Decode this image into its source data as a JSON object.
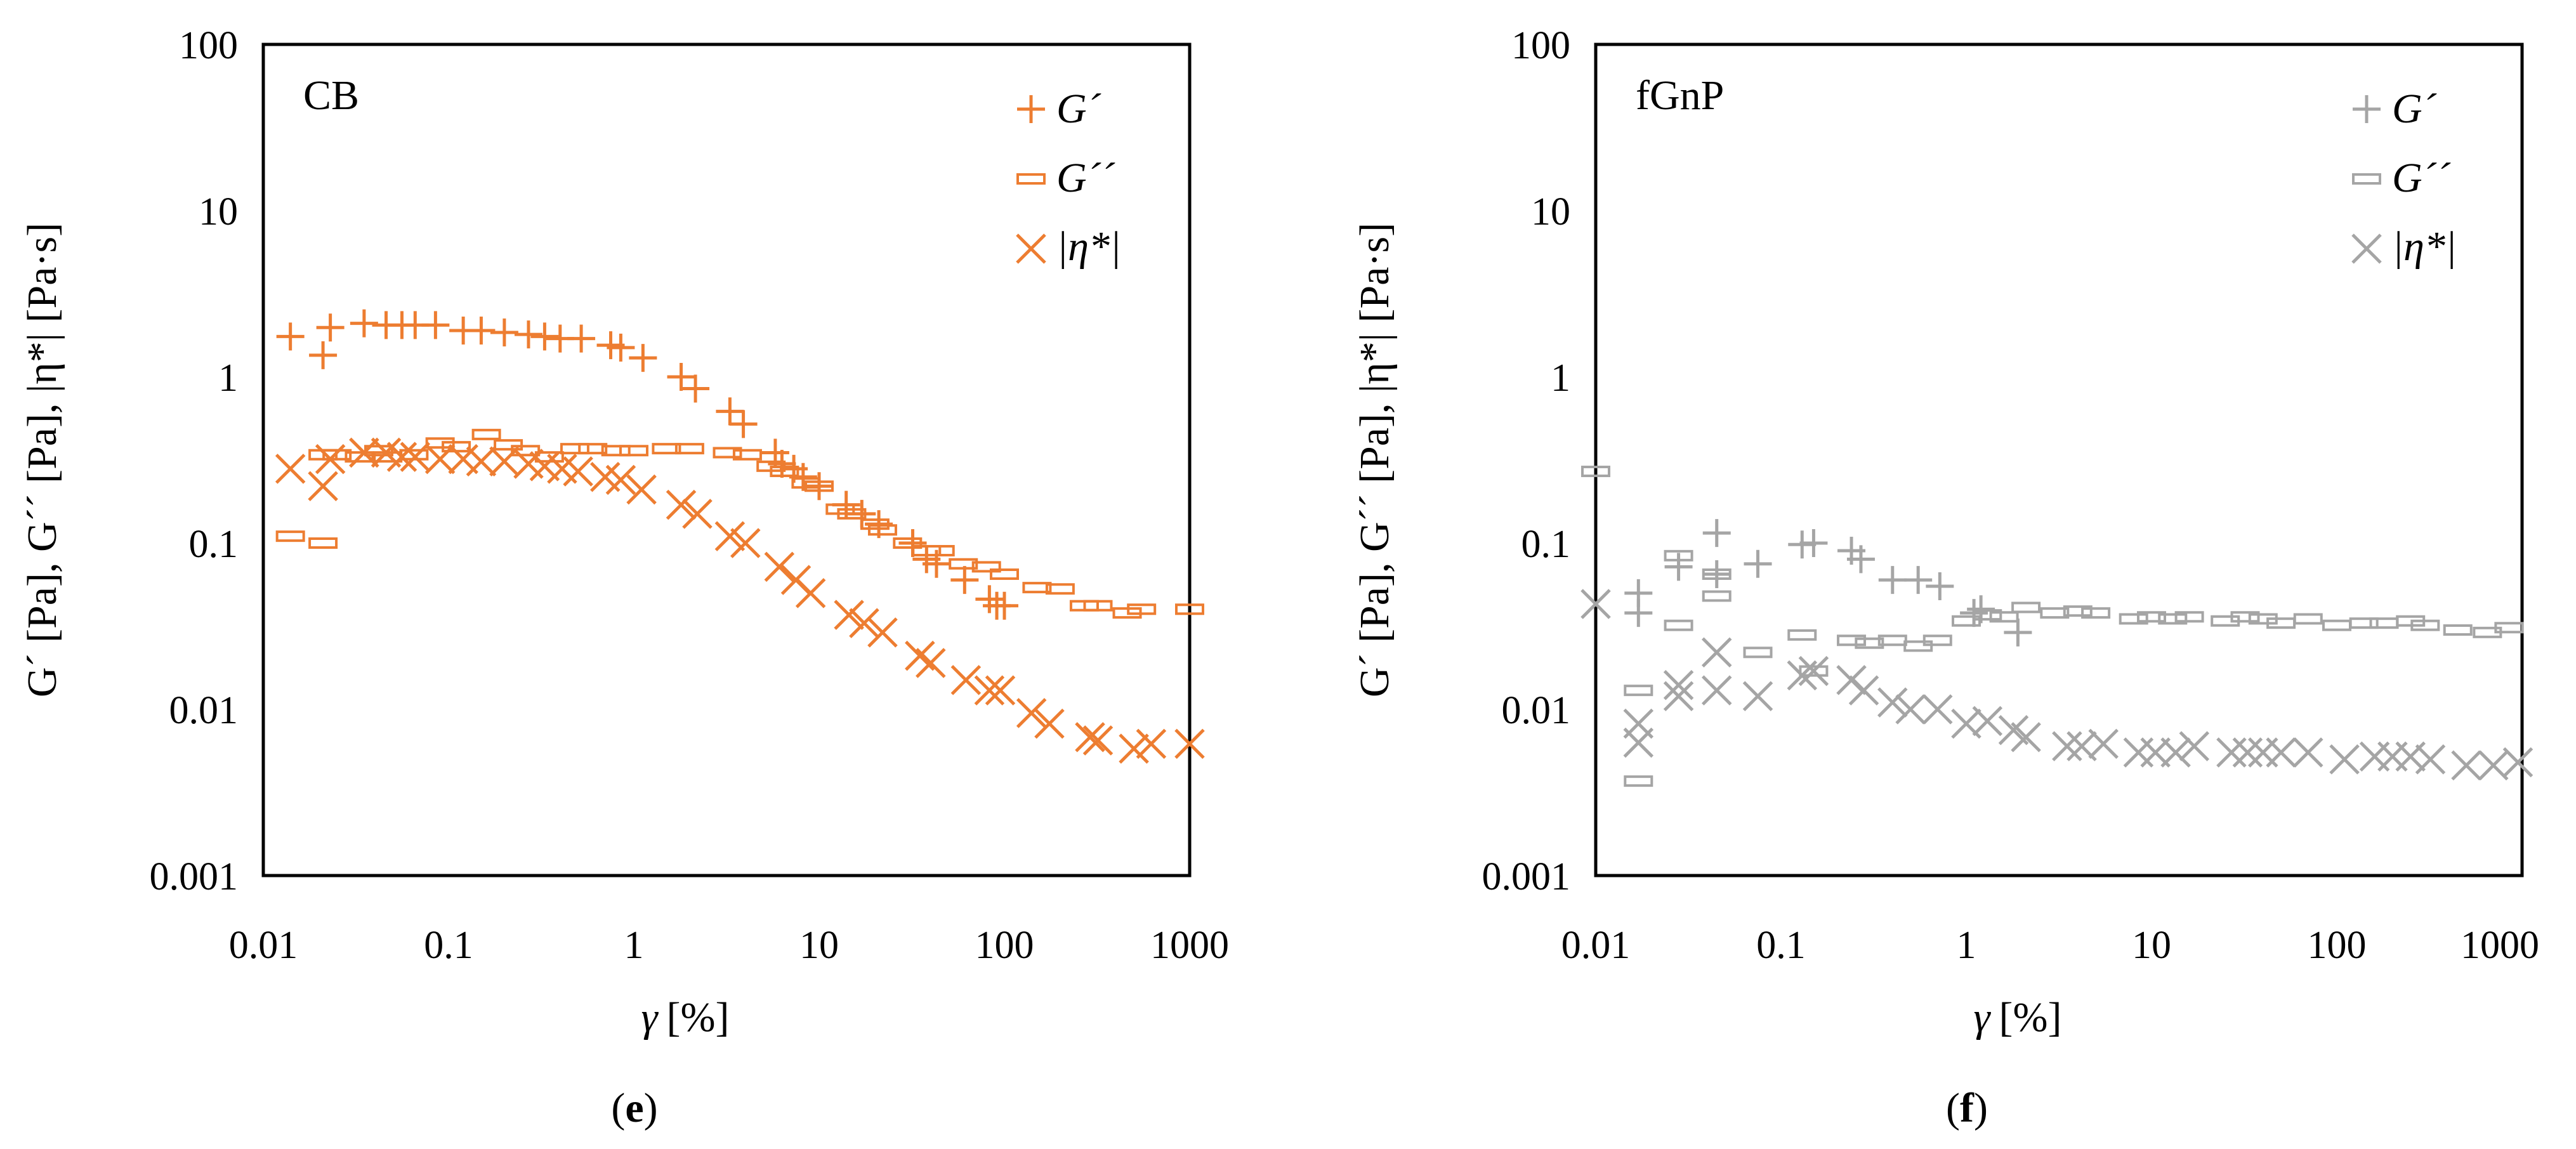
{
  "panels": [
    {
      "id": "e",
      "caption": "(e)",
      "caption_letter": "e",
      "annotation": "CB",
      "color": "#ED7D31",
      "xlabel_sym": "γ",
      "xlabel_unit": "[%]",
      "ylabel": "G´ [Pa], G´´ [Pa], |η*| [Pa·s]",
      "legend": [
        "G´",
        "G´´",
        "|η*|"
      ],
      "x_ticks": [
        "0.01",
        "0.1",
        "1",
        "10",
        "100",
        "1000"
      ],
      "y_ticks": [
        "0.001",
        "0.01",
        "0.1",
        "1",
        "10",
        "100"
      ]
    },
    {
      "id": "f",
      "caption": "(f)",
      "caption_letter": "f",
      "annotation": "fGnP",
      "color": "#A5A5A5",
      "xlabel_sym": "γ",
      "xlabel_unit": "[%]",
      "ylabel": "G´ [Pa], G´´ [Pa], |η*| [Pa·s]",
      "legend": [
        "G´",
        "G´´",
        "|η*|"
      ],
      "x_ticks": [
        "0.01",
        "0.1",
        "1",
        "10",
        "100",
        "1000"
      ],
      "y_ticks": [
        "0.001",
        "0.01",
        "0.1",
        "1",
        "10",
        "100"
      ]
    }
  ],
  "chart_data": [
    {
      "type": "scatter",
      "title": "CB",
      "xlabel": "γ [%]",
      "ylabel": "G´ [Pa], G´´ [Pa], |η*| [Pa·s]",
      "xscale": "log",
      "yscale": "log",
      "xlim": [
        0.01,
        1000
      ],
      "ylim": [
        0.001,
        100
      ],
      "legend_position": "top-right",
      "color": "#ED7D31",
      "series": [
        {
          "name": "G´",
          "marker": "plus",
          "x": [
            0.014,
            0.021,
            0.023,
            0.035,
            0.046,
            0.056,
            0.066,
            0.085,
            0.12,
            0.15,
            0.2,
            0.27,
            0.33,
            0.4,
            0.52,
            0.75,
            0.85,
            1.12,
            1.8,
            2.15,
            3.3,
            3.9,
            5.8,
            6.3,
            7.3,
            8.2,
            10,
            14,
            17,
            21,
            32,
            38,
            43,
            61,
            83,
            91,
            100
          ],
          "y": [
            1.75,
            1.35,
            1.98,
            2.1,
            2.05,
            2.05,
            2.05,
            2.05,
            1.9,
            1.9,
            1.85,
            1.8,
            1.75,
            1.7,
            1.7,
            1.55,
            1.5,
            1.3,
            1.0,
            0.85,
            0.62,
            0.52,
            0.35,
            0.3,
            0.28,
            0.25,
            0.22,
            0.17,
            0.15,
            0.13,
            0.1,
            0.08,
            0.075,
            0.06,
            0.046,
            0.042,
            0.042
          ]
        },
        {
          "name": "G´´",
          "marker": "rect",
          "x": [
            0.014,
            0.021,
            0.021,
            0.025,
            0.033,
            0.042,
            0.047,
            0.065,
            0.09,
            0.11,
            0.16,
            0.21,
            0.26,
            0.35,
            0.48,
            0.6,
            0.8,
            1.0,
            1.5,
            2.0,
            3.2,
            4.1,
            5.5,
            6.5,
            8.5,
            10,
            13,
            15,
            20,
            22,
            30,
            38,
            45,
            60,
            80,
            100,
            150,
            200,
            270,
            320,
            460,
            550,
            1000
          ],
          "y": [
            0.11,
            0.1,
            0.34,
            0.34,
            0.33,
            0.36,
            0.33,
            0.34,
            0.4,
            0.38,
            0.45,
            0.39,
            0.36,
            0.33,
            0.37,
            0.37,
            0.36,
            0.36,
            0.37,
            0.37,
            0.35,
            0.34,
            0.29,
            0.27,
            0.23,
            0.22,
            0.16,
            0.15,
            0.13,
            0.12,
            0.1,
            0.09,
            0.09,
            0.075,
            0.072,
            0.065,
            0.054,
            0.053,
            0.042,
            0.042,
            0.038,
            0.04,
            0.04
          ]
        },
        {
          "name": "|η*|",
          "marker": "cross",
          "x": [
            0.014,
            0.021,
            0.023,
            0.035,
            0.046,
            0.056,
            0.066,
            0.09,
            0.12,
            0.15,
            0.2,
            0.27,
            0.33,
            0.41,
            0.5,
            0.7,
            0.85,
            1.1,
            1.8,
            2.2,
            3.3,
            4.0,
            6.1,
            7.5,
            9.0,
            14.5,
            17.5,
            22,
            35,
            40,
            62,
            83,
            95,
            140,
            175,
            290,
            320,
            500,
            620,
            1000
          ],
          "y": [
            0.28,
            0.22,
            0.32,
            0.35,
            0.35,
            0.33,
            0.33,
            0.32,
            0.32,
            0.31,
            0.31,
            0.3,
            0.29,
            0.28,
            0.27,
            0.25,
            0.24,
            0.21,
            0.17,
            0.15,
            0.11,
            0.1,
            0.072,
            0.06,
            0.05,
            0.037,
            0.033,
            0.029,
            0.021,
            0.019,
            0.015,
            0.013,
            0.013,
            0.0095,
            0.0082,
            0.0068,
            0.0065,
            0.0058,
            0.0062,
            0.0062
          ]
        }
      ]
    },
    {
      "type": "scatter",
      "title": "fGnP",
      "xlabel": "γ [%]",
      "ylabel": "G´ [Pa], G´´ [Pa], |η*| [Pa·s]",
      "xscale": "log",
      "yscale": "log",
      "xlim": [
        0.01,
        1000
      ],
      "ylim": [
        0.001,
        100
      ],
      "legend_position": "top-right",
      "color": "#A5A5A5",
      "series": [
        {
          "name": "G´",
          "marker": "plus",
          "x": [
            0.017,
            0.017,
            0.028,
            0.045,
            0.045,
            0.075,
            0.13,
            0.15,
            0.24,
            0.27,
            0.4,
            0.55,
            0.72,
            1.1,
            1.2,
            1.9
          ],
          "y": [
            0.05,
            0.038,
            0.072,
            0.065,
            0.115,
            0.075,
            0.098,
            0.1,
            0.09,
            0.08,
            0.06,
            0.06,
            0.055,
            0.038,
            0.04,
            0.029
          ]
        },
        {
          "name": "G´´",
          "marker": "rect",
          "x": [
            0.01,
            0.017,
            0.017,
            0.028,
            0.028,
            0.045,
            0.045,
            0.075,
            0.13,
            0.15,
            0.24,
            0.3,
            0.4,
            0.55,
            0.7,
            1.0,
            1.3,
            1.6,
            2.1,
            3.0,
            4.0,
            5.0,
            8.0,
            10,
            13,
            16,
            25,
            32,
            40,
            50,
            70,
            100,
            140,
            180,
            250,
            300,
            450,
            650,
            850
          ],
          "y": [
            0.27,
            0.0037,
            0.013,
            0.032,
            0.084,
            0.048,
            0.065,
            0.022,
            0.028,
            0.017,
            0.026,
            0.025,
            0.026,
            0.024,
            0.026,
            0.034,
            0.037,
            0.036,
            0.041,
            0.038,
            0.039,
            0.038,
            0.035,
            0.036,
            0.035,
            0.036,
            0.034,
            0.036,
            0.035,
            0.033,
            0.035,
            0.032,
            0.033,
            0.033,
            0.034,
            0.032,
            0.03,
            0.029,
            0.031
          ]
        },
        {
          "name": "|η*|",
          "marker": "cross",
          "x": [
            0.01,
            0.017,
            0.017,
            0.028,
            0.028,
            0.045,
            0.045,
            0.075,
            0.13,
            0.15,
            0.24,
            0.28,
            0.4,
            0.5,
            0.7,
            1.0,
            1.3,
            1.8,
            2.1,
            3.5,
            4.2,
            5.5,
            8.5,
            10.5,
            13.5,
            17,
            27,
            33,
            40,
            50,
            70,
            110,
            160,
            200,
            250,
            320,
            500,
            700,
            950
          ],
          "y": [
            0.043,
            0.0082,
            0.0063,
            0.012,
            0.014,
            0.013,
            0.022,
            0.012,
            0.016,
            0.017,
            0.015,
            0.013,
            0.011,
            0.01,
            0.01,
            0.0082,
            0.0085,
            0.0075,
            0.0068,
            0.006,
            0.006,
            0.0062,
            0.0055,
            0.0055,
            0.0055,
            0.006,
            0.0055,
            0.0055,
            0.0055,
            0.0055,
            0.0055,
            0.005,
            0.0052,
            0.0052,
            0.0052,
            0.005,
            0.0046,
            0.0046,
            0.0048
          ]
        }
      ]
    }
  ]
}
